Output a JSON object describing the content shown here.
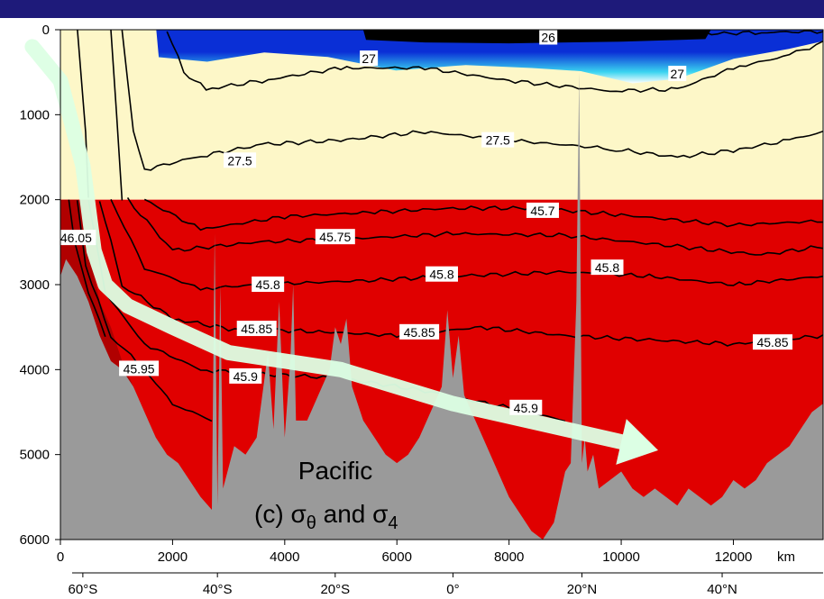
{
  "colors": {
    "header_bar": "#1e1a7a",
    "upper_fill": "#fdf7c8",
    "deep_fill": "#e00000",
    "deepest_fill": "#b00000",
    "bathymetry": "#9a9a9a",
    "surface_dark": "#000000",
    "surface_blue": "#0a2fd6",
    "surface_cyan": "#3ad4f0",
    "arrow": "#dcffe4",
    "contour": "#000000"
  },
  "caption": {
    "basin": "Pacific",
    "subtitle_prefix": "(c) ",
    "sigma": "σ",
    "theta": "θ",
    "and_text": " and ",
    "four": "4"
  },
  "chart_data": {
    "type": "heatmap",
    "title": "",
    "xlabel": "km",
    "ylabel": "",
    "xlim": [
      0,
      13600
    ],
    "ylim": [
      6000,
      0
    ],
    "x_ticks": [
      0,
      2000,
      4000,
      6000,
      8000,
      10000,
      12000
    ],
    "x_tick_labels": [
      "0",
      "2000",
      "4000",
      "6000",
      "8000",
      "10000",
      "12000"
    ],
    "x_unit_label": "km",
    "y_ticks": [
      0,
      1000,
      2000,
      3000,
      4000,
      5000,
      6000
    ],
    "y_tick_labels": [
      "0",
      "1000",
      "2000",
      "3000",
      "4000",
      "5000",
      "6000"
    ],
    "latitude_ticks": [
      {
        "km": 400,
        "label": "60°S"
      },
      {
        "km": 2800,
        "label": "40°S"
      },
      {
        "km": 4900,
        "label": "20°S"
      },
      {
        "km": 7000,
        "label": "0°"
      },
      {
        "km": 9300,
        "label": "20°N"
      },
      {
        "km": 11800,
        "label": "40°N"
      }
    ],
    "upper_variable": "σθ",
    "lower_variable": "σ4",
    "reference_split_depth": 2000,
    "contour_labels": [
      {
        "text": "26",
        "x": 8700,
        "y": 90
      },
      {
        "text": "27",
        "x": 5500,
        "y": 340
      },
      {
        "text": "27",
        "x": 11000,
        "y": 520
      },
      {
        "text": "27.5",
        "x": 3200,
        "y": 1540
      },
      {
        "text": "27.5",
        "x": 7800,
        "y": 1300
      },
      {
        "text": "45.7",
        "x": 8600,
        "y": 2130
      },
      {
        "text": "46.05",
        "x": 280,
        "y": 2450
      },
      {
        "text": "45.75",
        "x": 4900,
        "y": 2440
      },
      {
        "text": "45.8",
        "x": 3700,
        "y": 3000
      },
      {
        "text": "45.8",
        "x": 6800,
        "y": 2880
      },
      {
        "text": "45.8",
        "x": 9750,
        "y": 2800
      },
      {
        "text": "45.85",
        "x": 3500,
        "y": 3520
      },
      {
        "text": "45.85",
        "x": 6400,
        "y": 3560
      },
      {
        "text": "45.85",
        "x": 12700,
        "y": 3680
      },
      {
        "text": "45.95",
        "x": 1400,
        "y": 3990
      },
      {
        "text": "45.9",
        "x": 3300,
        "y": 4080
      },
      {
        "text": "45.9",
        "x": 8300,
        "y": 4450
      }
    ],
    "bathymetry": {
      "x": [
        0,
        100,
        300,
        500,
        700,
        900,
        1100,
        1300,
        1500,
        1700,
        1900,
        2100,
        2300,
        2500,
        2700,
        2750,
        2800,
        2850,
        2900,
        3100,
        3300,
        3500,
        3700,
        3800,
        3900,
        4000,
        4100,
        4150,
        4200,
        4400,
        4600,
        4800,
        4900,
        5000,
        5100,
        5200,
        5400,
        5600,
        5800,
        6000,
        6200,
        6400,
        6600,
        6800,
        6900,
        7000,
        7100,
        7200,
        7400,
        7600,
        7800,
        8000,
        8200,
        8400,
        8600,
        8800,
        9000,
        9100,
        9200,
        9250,
        9300,
        9350,
        9400,
        9500,
        9600,
        9800,
        10000,
        10200,
        10400,
        10600,
        10800,
        11000,
        11200,
        11400,
        11600,
        11800,
        12000,
        12200,
        12400,
        12600,
        12800,
        13000,
        13200,
        13400,
        13600
      ],
      "y": [
        2900,
        2700,
        2900,
        3200,
        3600,
        3900,
        4000,
        4200,
        4500,
        4800,
        5000,
        5100,
        5300,
        5500,
        5650,
        2400,
        5600,
        3000,
        5400,
        4900,
        5000,
        4800,
        3800,
        4700,
        3200,
        4800,
        3900,
        3000,
        4600,
        4600,
        4300,
        4000,
        3500,
        3700,
        3400,
        4200,
        4600,
        4800,
        5000,
        5100,
        5000,
        4800,
        4500,
        4200,
        3300,
        4100,
        3600,
        4300,
        4600,
        4900,
        5200,
        5500,
        5700,
        5900,
        6000,
        5800,
        5200,
        5100,
        3200,
        500,
        5100,
        4800,
        5200,
        5000,
        5400,
        5300,
        5200,
        5400,
        5500,
        5400,
        5500,
        5600,
        5400,
        5500,
        5600,
        5500,
        5300,
        5400,
        5300,
        5100,
        5000,
        4900,
        4700,
        4500,
        4400
      ]
    },
    "arrow_path_km_m": [
      [
        -500,
        200
      ],
      [
        0,
        600
      ],
      [
        400,
        1600
      ],
      [
        600,
        2600
      ],
      [
        800,
        3000
      ],
      [
        1200,
        3250
      ],
      [
        2000,
        3500
      ],
      [
        3000,
        3800
      ],
      [
        4000,
        3900
      ],
      [
        5000,
        4000
      ],
      [
        6000,
        4200
      ],
      [
        7000,
        4400
      ],
      [
        8000,
        4550
      ],
      [
        9000,
        4700
      ],
      [
        10000,
        4850
      ]
    ]
  }
}
